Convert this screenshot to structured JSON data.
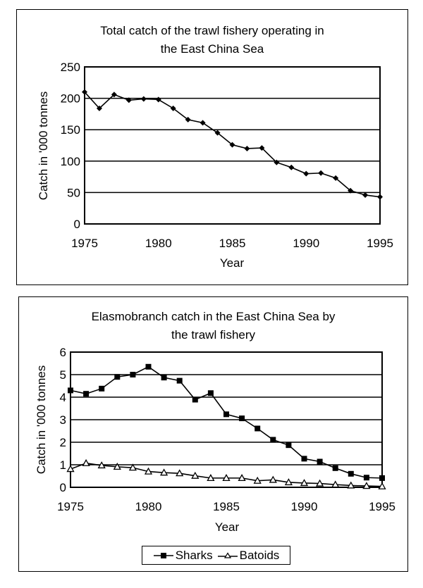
{
  "chart_data": [
    {
      "type": "line",
      "title": "Total catch of the trawl fishery operating in the East China Sea",
      "title_lines": [
        "Total catch of the trawl fishery operating in",
        "the East China Sea"
      ],
      "xlabel": "Year",
      "ylabel": "Catch in '000 tonnes",
      "x": [
        1975,
        1976,
        1977,
        1978,
        1979,
        1980,
        1981,
        1982,
        1983,
        1984,
        1985,
        1986,
        1987,
        1988,
        1989,
        1990,
        1991,
        1992,
        1993,
        1994,
        1995
      ],
      "xticks": [
        1975,
        1980,
        1985,
        1990,
        1995
      ],
      "yticks": [
        0,
        50,
        100,
        150,
        200,
        250
      ],
      "xlim": [
        1975,
        1995
      ],
      "ylim": [
        0,
        250
      ],
      "grid": "horizontal",
      "legend": null,
      "series": [
        {
          "name": "Total catch",
          "marker": "diamond",
          "values": [
            210,
            184,
            206,
            197,
            199,
            198,
            184,
            166,
            161,
            145,
            126,
            120,
            121,
            98,
            90,
            80,
            81,
            73,
            53,
            46,
            43
          ]
        }
      ]
    },
    {
      "type": "line",
      "title": "Elasmobranch catch in the East China Sea by the trawl fishery",
      "title_lines": [
        "Elasmobranch catch in the East China Sea by",
        "the trawl fishery"
      ],
      "xlabel": "Year",
      "ylabel": "Catch in '000 tonnes",
      "x": [
        1975,
        1976,
        1977,
        1978,
        1979,
        1980,
        1981,
        1982,
        1983,
        1984,
        1985,
        1986,
        1987,
        1988,
        1989,
        1990,
        1991,
        1992,
        1993,
        1994,
        1995
      ],
      "xticks": [
        1975,
        1980,
        1985,
        1990,
        1995
      ],
      "yticks": [
        0,
        1,
        2,
        3,
        4,
        5,
        6
      ],
      "xlim": [
        1975,
        1995
      ],
      "ylim": [
        0,
        6
      ],
      "grid": "horizontal",
      "legend": "bottom",
      "series": [
        {
          "name": "Sharks",
          "marker": "filled-square",
          "values": [
            4.3,
            4.15,
            4.38,
            4.9,
            5.0,
            5.35,
            4.87,
            4.73,
            3.89,
            4.18,
            3.24,
            3.06,
            2.61,
            2.11,
            1.87,
            1.27,
            1.14,
            0.85,
            0.6,
            0.43,
            0.41
          ]
        },
        {
          "name": "Batoids",
          "marker": "open-triangle",
          "values": [
            0.81,
            1.07,
            0.97,
            0.91,
            0.87,
            0.7,
            0.65,
            0.62,
            0.51,
            0.41,
            0.41,
            0.41,
            0.29,
            0.33,
            0.22,
            0.19,
            0.17,
            0.12,
            0.08,
            0.06,
            0.04
          ]
        }
      ]
    }
  ],
  "top_chart": {
    "title_line1": "Total catch of the trawl fishery operating in",
    "title_line2": "the East China Sea",
    "xlabel": "Year",
    "ylabel": "Catch in '000 tonnes"
  },
  "bottom_chart": {
    "title_line1": "Elasmobranch catch in the East China Sea by",
    "title_line2": "the trawl fishery",
    "xlabel": "Year",
    "ylabel": "Catch in '000 tonnes",
    "legend": {
      "sharks_label": "Sharks",
      "batoids_label": "Batoids"
    }
  },
  "colors": {
    "ink": "#000000",
    "background": "#ffffff"
  }
}
